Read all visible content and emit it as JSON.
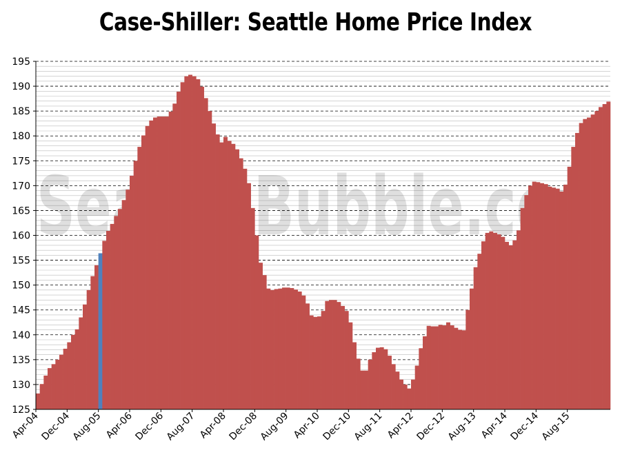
{
  "chart_data": {
    "type": "bar",
    "title": "Case-Shiller: Seattle Home Price Index",
    "xlabel": "",
    "ylabel": "",
    "ylim": [
      125,
      195
    ],
    "yticks": [
      125,
      130,
      135,
      140,
      145,
      150,
      155,
      160,
      165,
      170,
      175,
      180,
      185,
      190,
      195
    ],
    "grid": true,
    "legend": "none",
    "highlight_index": 16,
    "colors": {
      "bar": "#c0504d",
      "highlight": "#4f81bd",
      "grid": "#000000",
      "minor_grid": "#bbbbbb"
    },
    "watermark": "SeattleBubble.com",
    "x_tick_labels": [
      "Apr-04",
      "Dec-04",
      "Aug-05",
      "Apr-06",
      "Dec-06",
      "Aug-07",
      "Apr-08",
      "Dec-08",
      "Aug-09",
      "Apr-10",
      "Dec-10",
      "Aug-11",
      "Apr-12",
      "Dec-12",
      "Aug-13",
      "Apr-14",
      "Dec-14",
      "Aug-15"
    ],
    "x_tick_every": 8,
    "values": [
      128.2,
      130.1,
      131.8,
      133.3,
      134.1,
      135.0,
      136.0,
      137.2,
      138.5,
      140.0,
      141.1,
      143.5,
      146.1,
      149.0,
      151.8,
      154.0,
      156.4,
      158.9,
      160.9,
      162.3,
      163.9,
      165.3,
      167.1,
      169.2,
      172.0,
      175.0,
      177.8,
      180.1,
      182.0,
      183.1,
      183.7,
      183.9,
      183.9,
      183.9,
      184.9,
      186.5,
      188.9,
      190.8,
      192.0,
      192.3,
      192.0,
      191.4,
      189.9,
      187.6,
      185.0,
      182.5,
      180.3,
      178.7,
      179.8,
      179.0,
      178.4,
      177.3,
      175.5,
      173.4,
      170.5,
      165.5,
      160.0,
      154.5,
      152.0,
      149.3,
      149.0,
      149.2,
      149.3,
      149.5,
      149.5,
      149.4,
      149.1,
      148.7,
      147.9,
      146.3,
      143.9,
      143.6,
      143.7,
      144.8,
      146.8,
      147.0,
      147.0,
      146.6,
      145.8,
      144.8,
      142.5,
      138.5,
      135.2,
      132.8,
      132.8,
      135.0,
      136.5,
      137.4,
      137.5,
      137.1,
      135.8,
      134.1,
      132.6,
      131.0,
      130.0,
      129.2,
      131.0,
      133.8,
      137.3,
      139.7,
      141.8,
      141.7,
      141.7,
      142.0,
      141.9,
      142.5,
      141.9,
      141.4,
      141.0,
      140.9,
      145.0,
      149.3,
      153.6,
      156.3,
      158.8,
      160.5,
      160.8,
      160.5,
      160.2,
      159.7,
      158.7,
      158.0,
      159.0,
      161.0,
      165.5,
      168.1,
      170.0,
      170.8,
      170.7,
      170.5,
      170.3,
      169.8,
      169.6,
      169.4,
      168.8,
      170.2,
      173.8,
      177.8,
      180.6,
      182.6,
      183.4,
      183.7,
      184.3,
      185.0,
      185.8,
      186.4,
      186.9
    ]
  }
}
